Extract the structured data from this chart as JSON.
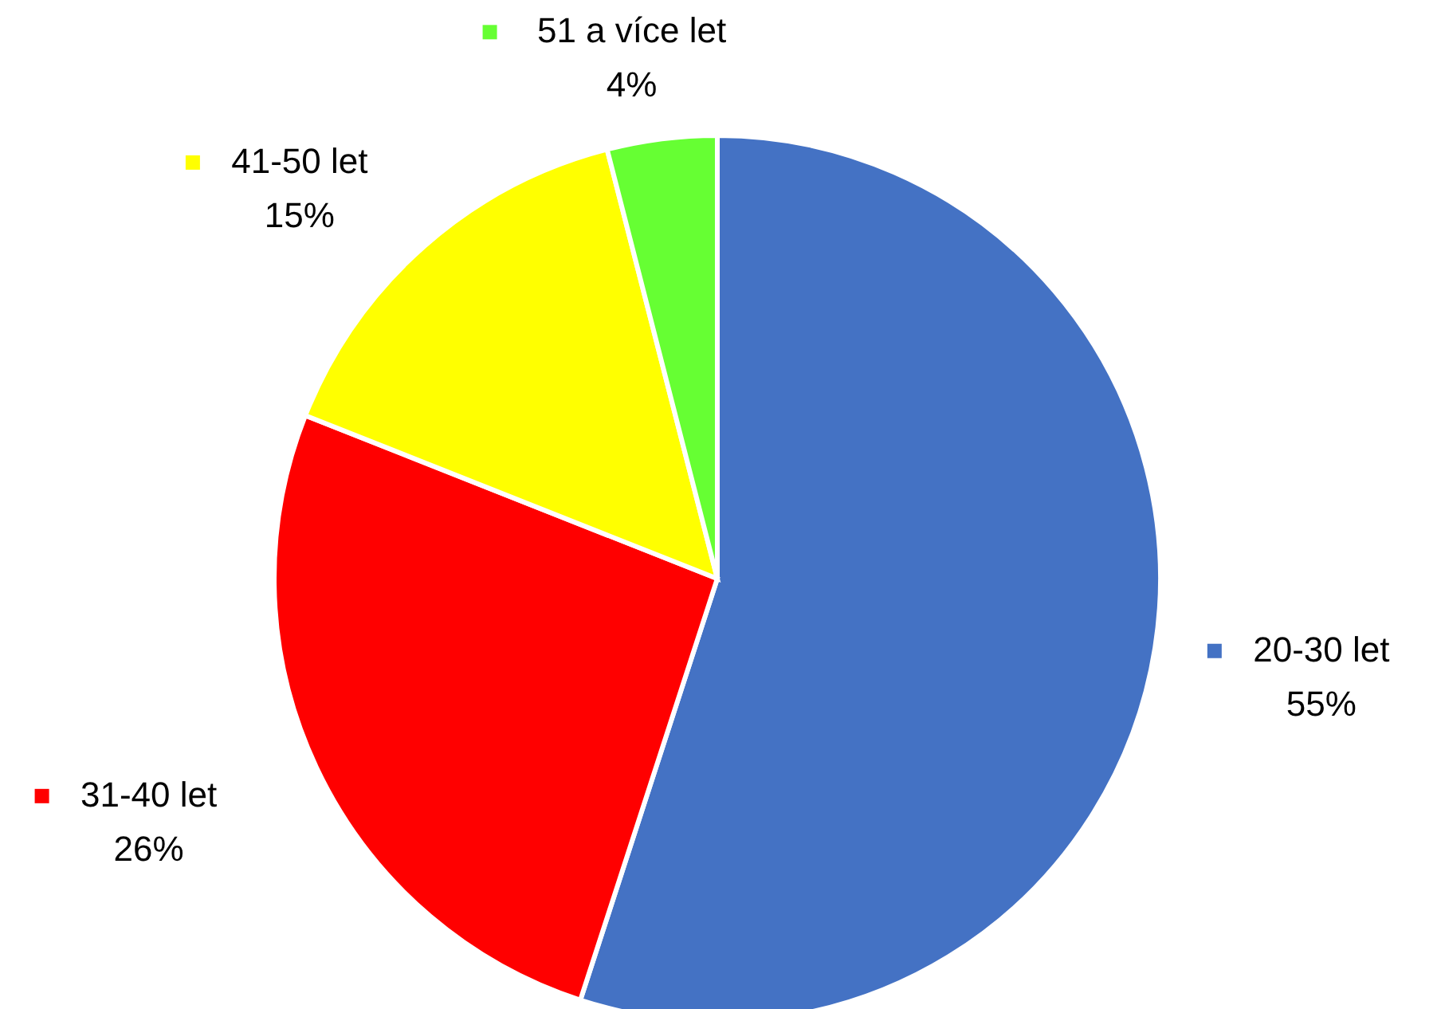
{
  "chart_data": {
    "type": "pie",
    "categories": [
      "20-30 let",
      "31-40 let",
      "41-50 let",
      "51 a více let"
    ],
    "values": [
      55,
      26,
      15,
      4
    ],
    "value_labels": [
      "55%",
      "26%",
      "15%",
      "4%"
    ],
    "colors": [
      "#4472c4",
      "#ff0000",
      "#ffff00",
      "#66ff33"
    ],
    "legend": "right"
  }
}
